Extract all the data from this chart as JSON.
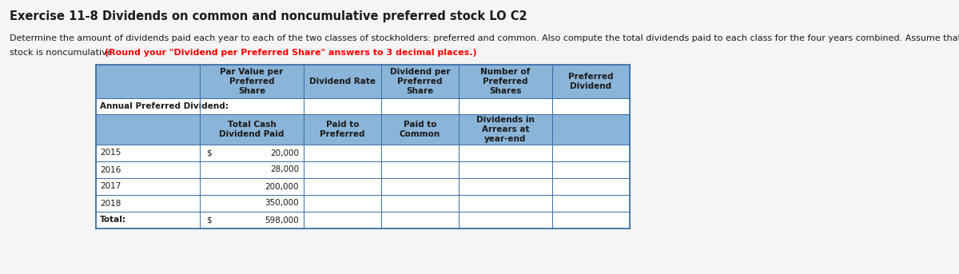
{
  "title": "Exercise 11-8 Dividends on common and noncumulative preferred stock LO C2",
  "desc_line1": "Determine the amount of dividends paid each year to each of the two classes of stockholders: preferred and common. Also compute the total dividends paid to each class for the four years combined. Assume that the preferred",
  "desc_line2_normal": "stock is noncumulative. ",
  "desc_line2_red": "(Round your \"Dividend per Preferred Share\" answers to 3 decimal places.)",
  "header1_texts": [
    "",
    "Par Value per\nPreferred\nShare",
    "Dividend Rate",
    "Dividend per\nPreferred\nShare",
    "Number of\nPreferred\nShares",
    "Preferred\nDividend"
  ],
  "annual_label": "Annual Preferred Dividend:",
  "header2_texts": [
    "",
    "Total Cash\nDividend Paid",
    "Paid to\nPreferred",
    "Paid to\nCommon",
    "Dividends in\nArrears at\nyear-end",
    ""
  ],
  "data_rows": [
    [
      "2015",
      "$",
      "20,000"
    ],
    [
      "2016",
      "",
      "28,000"
    ],
    [
      "2017",
      "",
      "200,000"
    ],
    [
      "2018",
      "",
      "350,000"
    ],
    [
      "Total:",
      "$",
      "598,000"
    ]
  ],
  "header_bg": "#8ab4d8",
  "white_bg": "#ffffff",
  "border_color": "#3a6ea5",
  "text_color": "#1a1a1a",
  "title_fontsize": 10.5,
  "desc_fontsize": 8.0,
  "table_fontsize": 7.5,
  "bg_color": "#f5f5f5"
}
